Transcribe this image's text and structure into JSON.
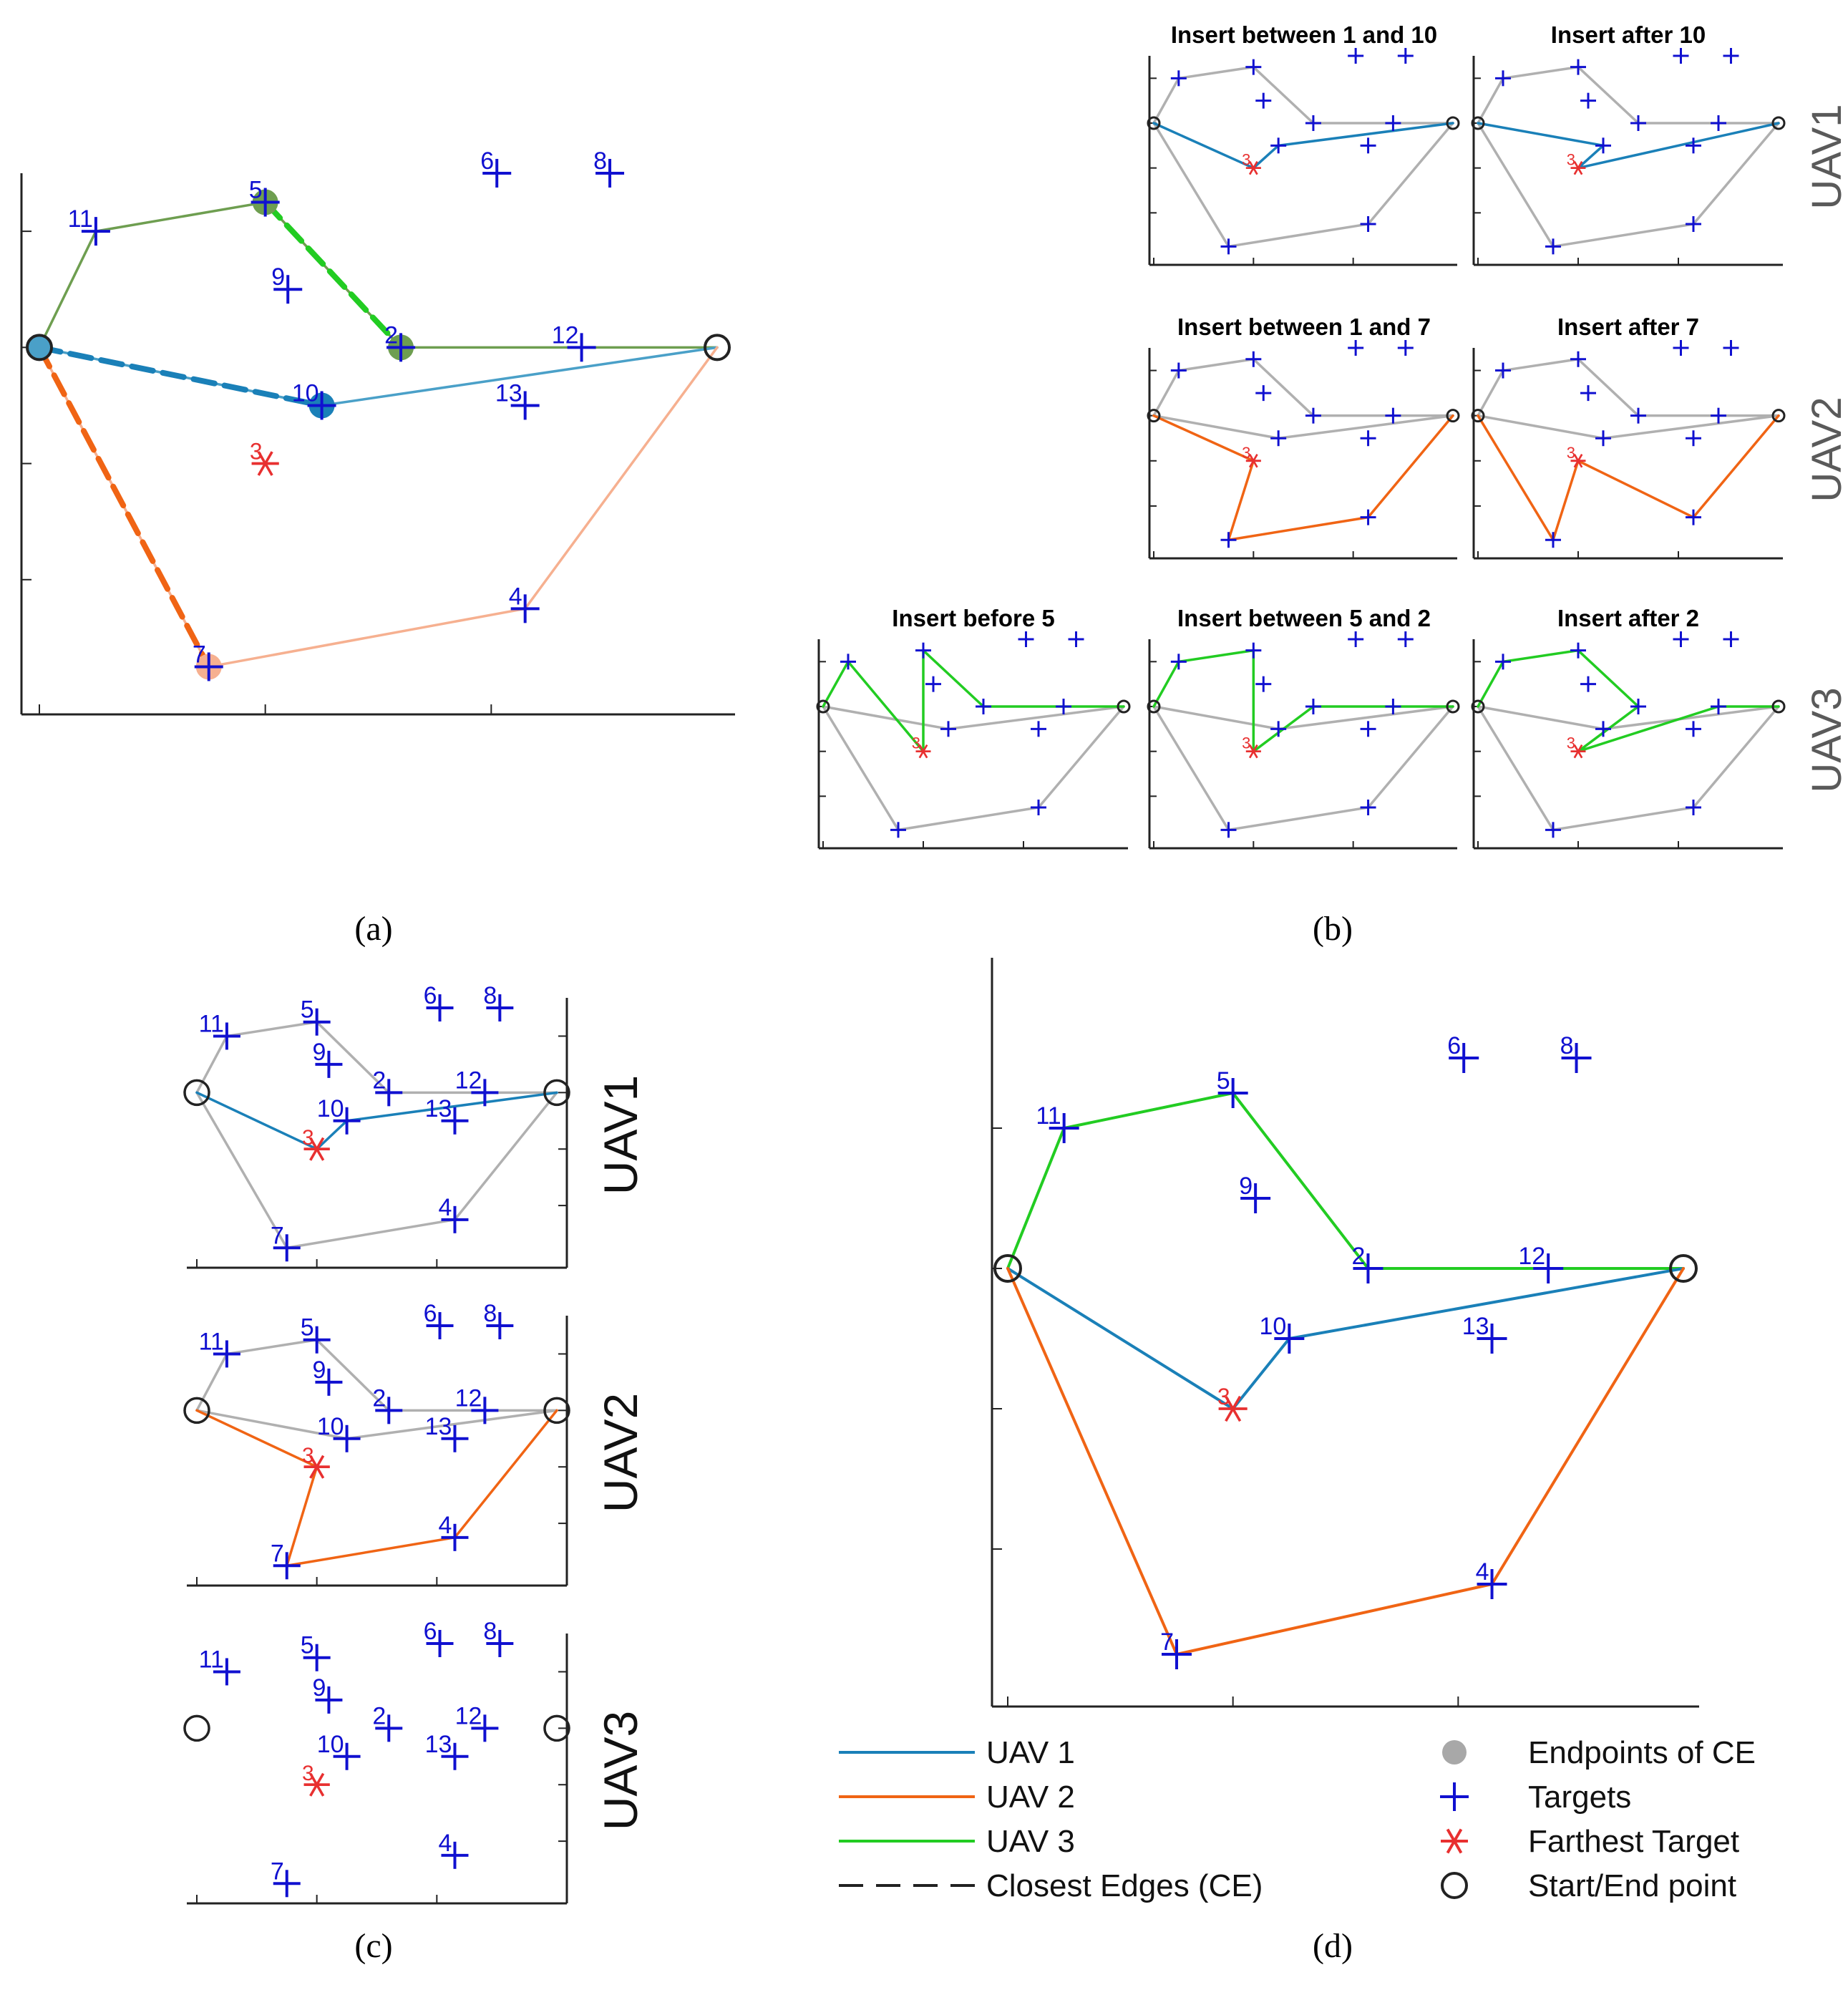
{
  "figure": {
    "captions": {
      "a": "(a)",
      "b": "(b)",
      "c": "(c)",
      "d": "(d)"
    },
    "colors": {
      "uav1": "#1a80b8",
      "uav2": "#f06414",
      "uav3": "#22cc22",
      "uav1_light": "#4aa0c8",
      "uav2_light": "#f6b090",
      "uav3_light": "#6e9e50",
      "gray_route": "#b0b0b0",
      "target": "#1010d0",
      "farthest": "#e83030",
      "endpoint_fill": "#a8a8a8"
    },
    "targets": [
      {
        "id": "2",
        "x": 6.4,
        "y": 6.0
      },
      {
        "id": "3",
        "x": 4.0,
        "y": 4.0,
        "farthest": true
      },
      {
        "id": "4",
        "x": 8.6,
        "y": 1.5
      },
      {
        "id": "5",
        "x": 4.0,
        "y": 8.5
      },
      {
        "id": "6",
        "x": 8.1,
        "y": 9.0
      },
      {
        "id": "7",
        "x": 3.0,
        "y": 0.5
      },
      {
        "id": "8",
        "x": 10.1,
        "y": 9.0
      },
      {
        "id": "9",
        "x": 4.4,
        "y": 7.0
      },
      {
        "id": "10",
        "x": 5.0,
        "y": 5.0
      },
      {
        "id": "11",
        "x": 1.0,
        "y": 8.0
      },
      {
        "id": "12",
        "x": 9.6,
        "y": 6.0
      },
      {
        "id": "13",
        "x": 8.6,
        "y": 5.0
      }
    ],
    "start_end": [
      {
        "x": 0.0,
        "y": 6.0
      },
      {
        "x": 12.0,
        "y": 6.0
      }
    ],
    "routes_initial": {
      "uav1": [
        "S",
        "10",
        "E"
      ],
      "uav2": [
        "S",
        "7",
        "4",
        "E"
      ],
      "uav3": [
        "S",
        "11",
        "5",
        "2",
        "12",
        "E"
      ]
    },
    "closest_edges": {
      "uav1": [
        "S",
        "10"
      ],
      "uav2": [
        "S",
        "7"
      ],
      "uav3": [
        "5",
        "2"
      ]
    },
    "panel_b": {
      "rows": [
        {
          "label": "UAV1",
          "panels": [
            {
              "title": "Insert between 1 and 10",
              "route": [
                "S",
                "3",
                "10",
                "E"
              ]
            },
            {
              "title": "Insert after 10",
              "route": [
                "S",
                "10",
                "3",
                "E"
              ]
            }
          ]
        },
        {
          "label": "UAV2",
          "panels": [
            {
              "title": "Insert between 1 and 7",
              "route": [
                "S",
                "3",
                "7",
                "4",
                "E"
              ]
            },
            {
              "title": "Insert after 7",
              "route": [
                "S",
                "7",
                "3",
                "4",
                "E"
              ]
            }
          ]
        },
        {
          "label": "UAV3",
          "panels": [
            {
              "title": "Insert before 5",
              "route": [
                "S",
                "11",
                "3",
                "5",
                "2",
                "12",
                "E"
              ]
            },
            {
              "title": "Insert between 5 and 2",
              "route": [
                "S",
                "11",
                "5",
                "3",
                "2",
                "12",
                "E"
              ]
            },
            {
              "title": "Insert after 2",
              "route": [
                "S",
                "11",
                "5",
                "2",
                "3",
                "12",
                "E"
              ]
            }
          ]
        }
      ]
    },
    "panel_c": {
      "rows": [
        {
          "label": "UAV1",
          "route": [
            "S",
            "3",
            "10",
            "E"
          ]
        },
        {
          "label": "UAV2",
          "route": [
            "S",
            "3",
            "7",
            "4",
            "E"
          ]
        },
        {
          "label": "UAV3",
          "route": []
        }
      ]
    },
    "panel_d": {
      "routes": {
        "uav1": [
          "S",
          "3",
          "10",
          "E"
        ],
        "uav2": [
          "S",
          "7",
          "4",
          "E"
        ],
        "uav3": [
          "S",
          "11",
          "5",
          "2",
          "12",
          "E"
        ]
      }
    },
    "legend": {
      "left": [
        "UAV 1",
        "UAV 2",
        "UAV 3",
        "Closest Edges (CE)"
      ],
      "right": [
        "Endpoints of CE",
        "Targets",
        "Farthest Target",
        "Start/End point"
      ]
    }
  }
}
